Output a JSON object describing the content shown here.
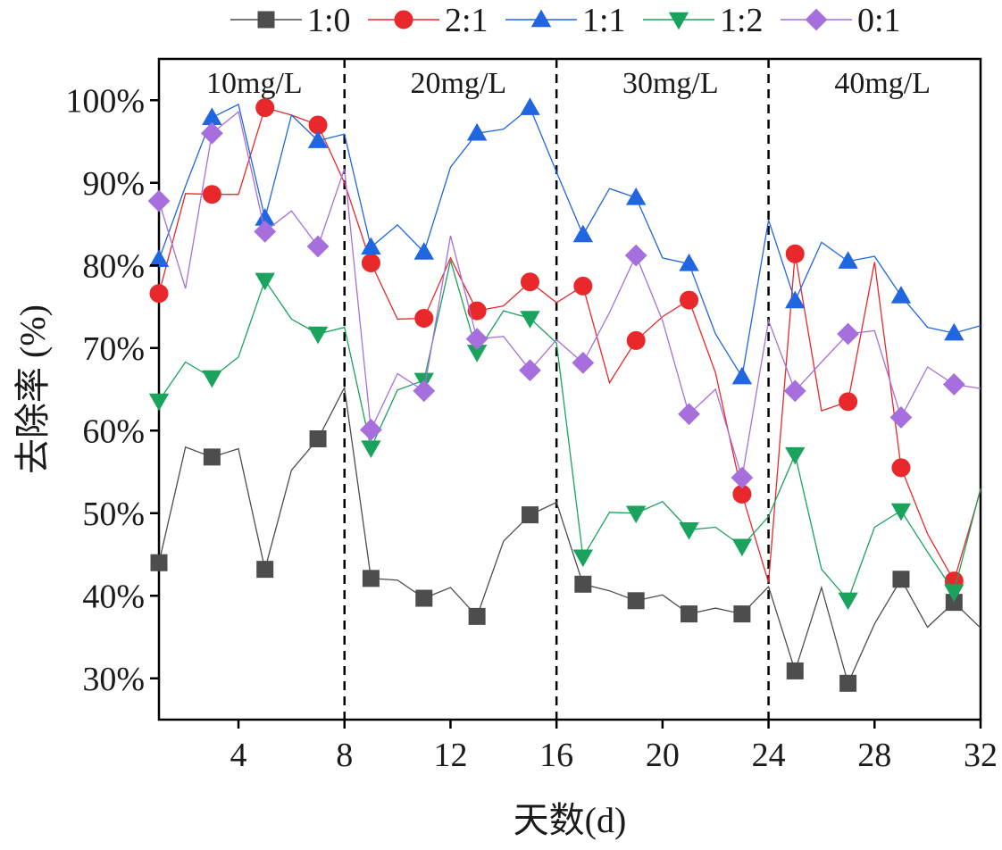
{
  "chart_data": {
    "type": "line",
    "title": "",
    "xlabel": "天数(d)",
    "ylabel": "去除率 (%)",
    "xlim": [
      1,
      32
    ],
    "ylim": [
      25,
      105
    ],
    "x_ticks": [
      4,
      8,
      12,
      16,
      20,
      24,
      28,
      32
    ],
    "x_tick_labels": [
      "4",
      "8",
      "12",
      "16",
      "20",
      "24",
      "28",
      "32"
    ],
    "y_ticks": [
      30,
      40,
      50,
      60,
      70,
      80,
      90,
      100
    ],
    "y_tick_labels": [
      "30%",
      "40%",
      "50%",
      "60%",
      "70%",
      "80%",
      "90%",
      "100%"
    ],
    "grid": false,
    "legend_position": "top",
    "phase_dividers": [
      8,
      16,
      24
    ],
    "phases": [
      {
        "label": "10mg/L",
        "center": 4.6
      },
      {
        "label": "20mg/L",
        "center": 12.3
      },
      {
        "label": "30mg/L",
        "center": 20.3
      },
      {
        "label": "40mg/L",
        "center": 28.3
      }
    ],
    "x": [
      1,
      2,
      3,
      4,
      5,
      6,
      7,
      8,
      9,
      10,
      11,
      12,
      13,
      14,
      15,
      16,
      17,
      18,
      19,
      20,
      21,
      22,
      23,
      24,
      25,
      26,
      27,
      28,
      29,
      30,
      31,
      32
    ],
    "marker_every": 2,
    "series": [
      {
        "name": "1:0",
        "color": "#4d4d4d",
        "marker": "square",
        "values": [
          44,
          58,
          56.8,
          57.8,
          43.2,
          55.2,
          59,
          65.2,
          42.1,
          41.9,
          39.7,
          41,
          37.5,
          46.6,
          49.8,
          51.3,
          41.4,
          40.6,
          39.4,
          40.1,
          37.8,
          38.5,
          37.8,
          41.1,
          30.9,
          41,
          29.4,
          36.6,
          42,
          36.2,
          39.2,
          36.1
        ]
      },
      {
        "name": "2:1",
        "color": "#e8282b",
        "marker": "circle",
        "values": [
          76.6,
          88.7,
          88.6,
          88.6,
          99.1,
          98.2,
          97,
          90,
          80.3,
          73.5,
          73.6,
          80.9,
          74.5,
          75.1,
          78,
          75.5,
          77.5,
          65.8,
          70.9,
          73.8,
          75.8,
          67,
          52.3,
          41.6,
          81.4,
          62.4,
          63.5,
          80.4,
          55.5,
          47.5,
          41.8,
          52.8
        ]
      },
      {
        "name": "1:1",
        "color": "#1f66e0",
        "marker": "triangle-up",
        "values": [
          80.7,
          89.6,
          97.9,
          99.5,
          85.7,
          98.2,
          95.1,
          95.9,
          82.2,
          84.9,
          81.6,
          91.9,
          96,
          96.5,
          99.1,
          91.3,
          83.7,
          89.3,
          88.2,
          80.9,
          80.2,
          71.7,
          66.5,
          85.5,
          75.7,
          82.8,
          80.5,
          81.1,
          76.3,
          72.5,
          71.8,
          72.7
        ]
      },
      {
        "name": "1:2",
        "color": "#1aa35c",
        "marker": "triangle-down",
        "values": [
          63.6,
          68.3,
          66.4,
          68.9,
          78.2,
          73.5,
          71.7,
          72.5,
          57.9,
          64.9,
          66.1,
          80.6,
          69.5,
          74.5,
          73.6,
          70.6,
          44.7,
          50.1,
          50,
          51.4,
          48,
          48.3,
          46,
          49.6,
          57.1,
          43.2,
          39.5,
          48.3,
          50.3,
          45.3,
          40.5,
          53
        ]
      },
      {
        "name": "0:1",
        "color": "#a66fdd",
        "marker": "diamond",
        "values": [
          87.8,
          77.2,
          96,
          98.6,
          84.1,
          86.6,
          82.3,
          91.7,
          60.1,
          66.9,
          64.8,
          83.6,
          71.1,
          71.4,
          67.3,
          71,
          68.2,
          74.3,
          81.2,
          73.3,
          62,
          65,
          54.3,
          73.3,
          64.8,
          68.3,
          71.7,
          72.1,
          61.6,
          67.7,
          65.6,
          65.1
        ]
      }
    ]
  }
}
